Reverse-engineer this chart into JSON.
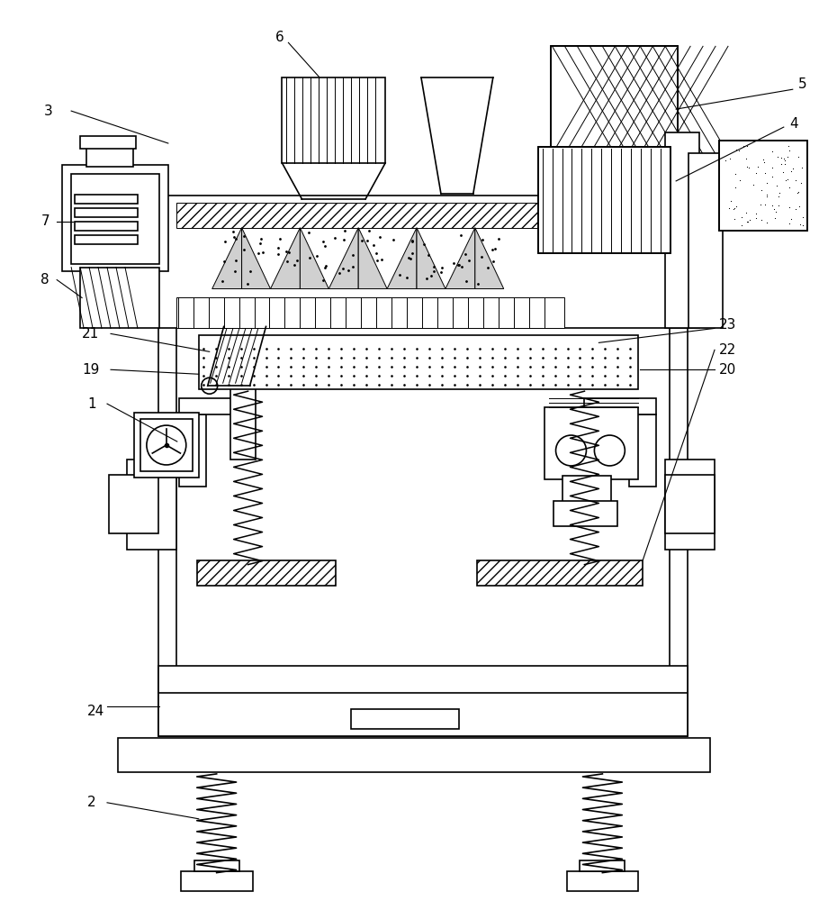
{
  "bg_color": "#ffffff",
  "lc": "#000000",
  "lw": 1.2,
  "thin": 0.7,
  "figsize": [
    9.3,
    10.0
  ],
  "dpi": 100
}
